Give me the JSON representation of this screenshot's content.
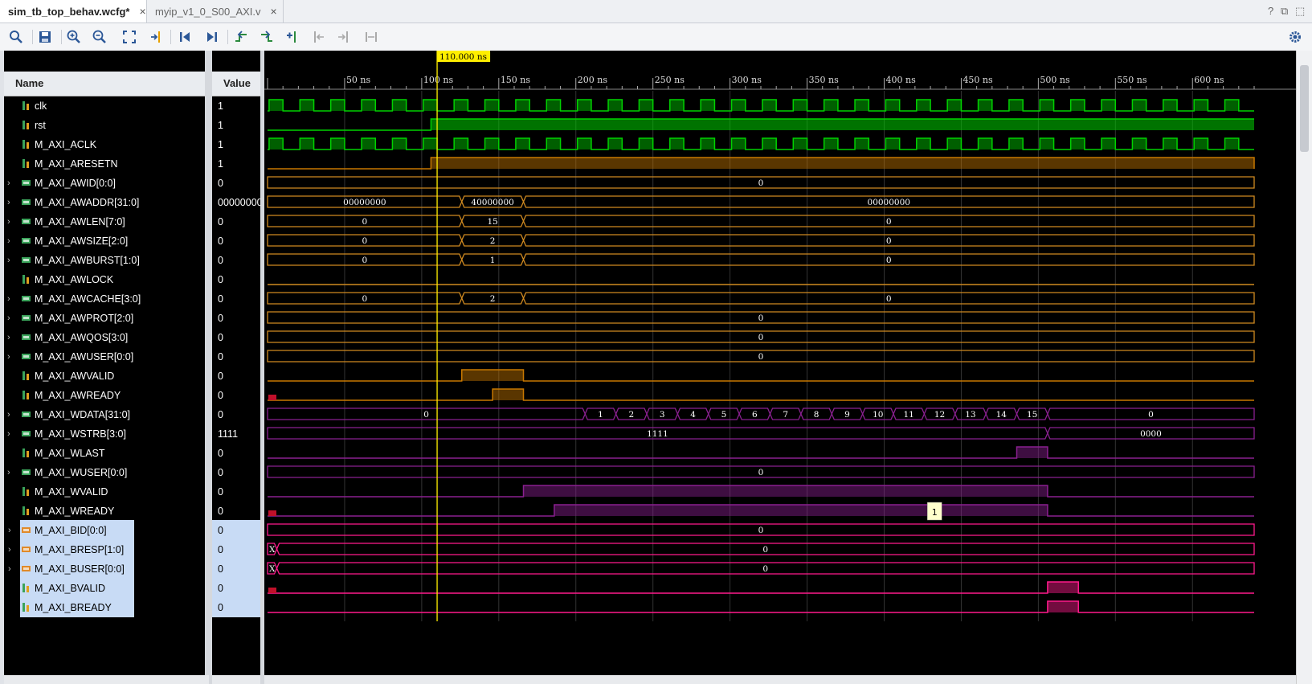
{
  "tabs": [
    {
      "label": "sim_tb_top_behav.wcfg*",
      "close": "×"
    },
    {
      "label": "myip_v1_0_S00_AXI.v",
      "close": "×"
    }
  ],
  "window_controls": {
    "help": "?",
    "restore": "⧉",
    "maximize": "⬚"
  },
  "toolbar_icons": [
    "search-icon",
    "save-icon",
    "zoom-in-icon",
    "zoom-out-icon",
    "zoom-fit-icon",
    "go-to-cursor-icon",
    "go-to-time-zero-icon",
    "go-to-last-time-icon",
    "previous-transition-icon",
    "next-transition-icon",
    "add-marker-icon",
    "previous-marker-icon",
    "next-marker-icon",
    "swap-cursors-icon",
    "settings-gear-icon"
  ],
  "columns": {
    "name": "Name",
    "value": "Value"
  },
  "cursor": {
    "label": "110.000 ns",
    "time_ns": 110
  },
  "time_axis": {
    "start_ns": 0,
    "end_ns": 640,
    "ticks": [
      {
        "t": 50,
        "label": "50 ns"
      },
      {
        "t": 100,
        "label": "100 ns"
      },
      {
        "t": 150,
        "label": "150 ns"
      },
      {
        "t": 200,
        "label": "200 ns"
      },
      {
        "t": 250,
        "label": "250 ns"
      },
      {
        "t": 300,
        "label": "300 ns"
      },
      {
        "t": 350,
        "label": "350 ns"
      },
      {
        "t": 400,
        "label": "400 ns"
      },
      {
        "t": 450,
        "label": "450 ns"
      },
      {
        "t": 500,
        "label": "500 ns"
      },
      {
        "t": 550,
        "label": "550 ns"
      },
      {
        "t": 600,
        "label": "600 ns"
      }
    ]
  },
  "signals": [
    {
      "name": "clk",
      "value": "1",
      "bus": false,
      "icon": "wire-icon",
      "color": "#00d200",
      "kind": "clock",
      "period": 20,
      "offset": 0,
      "selected": false
    },
    {
      "name": "rst",
      "value": "1",
      "bus": false,
      "icon": "wire-icon",
      "color": "#00d200",
      "kind": "clockhigh",
      "period": 10,
      "offset": 0,
      "selected": false,
      "high_from": 106
    },
    {
      "name": "M_AXI_ACLK",
      "value": "1",
      "bus": false,
      "icon": "wire-icon",
      "color": "#00d200",
      "kind": "clock",
      "period": 20,
      "offset": 0,
      "selected": false
    },
    {
      "name": "M_AXI_ARESETN",
      "value": "1",
      "bus": false,
      "icon": "wire-icon",
      "color": "#c87800",
      "kind": "bitfill",
      "selected": false,
      "fill_from": 106,
      "fill_to": 640
    },
    {
      "name": "M_AXI_AWID[0:0]",
      "value": "0",
      "bus": true,
      "icon": "bus-icon",
      "color": "#d08a20",
      "kind": "bus",
      "selected": false,
      "segments": [
        {
          "from": 0,
          "to": 640,
          "label": "0"
        }
      ]
    },
    {
      "name": "M_AXI_AWADDR[31:0]",
      "value": "00000000",
      "bus": true,
      "icon": "bus-icon",
      "color": "#d08a20",
      "kind": "bus",
      "selected": false,
      "segments": [
        {
          "from": 0,
          "to": 126,
          "label": "00000000"
        },
        {
          "from": 126,
          "to": 166,
          "label": "40000000"
        },
        {
          "from": 166,
          "to": 640,
          "label": "00000000"
        }
      ]
    },
    {
      "name": "M_AXI_AWLEN[7:0]",
      "value": "0",
      "bus": true,
      "icon": "bus-icon",
      "color": "#d08a20",
      "kind": "bus",
      "selected": false,
      "segments": [
        {
          "from": 0,
          "to": 126,
          "label": "0"
        },
        {
          "from": 126,
          "to": 166,
          "label": "15"
        },
        {
          "from": 166,
          "to": 640,
          "label": "0"
        }
      ]
    },
    {
      "name": "M_AXI_AWSIZE[2:0]",
      "value": "0",
      "bus": true,
      "icon": "bus-icon",
      "color": "#d08a20",
      "kind": "bus",
      "selected": false,
      "segments": [
        {
          "from": 0,
          "to": 126,
          "label": "0"
        },
        {
          "from": 126,
          "to": 166,
          "label": "2"
        },
        {
          "from": 166,
          "to": 640,
          "label": "0"
        }
      ]
    },
    {
      "name": "M_AXI_AWBURST[1:0]",
      "value": "0",
      "bus": true,
      "icon": "bus-icon",
      "color": "#d08a20",
      "kind": "bus",
      "selected": false,
      "segments": [
        {
          "from": 0,
          "to": 126,
          "label": "0"
        },
        {
          "from": 126,
          "to": 166,
          "label": "1"
        },
        {
          "from": 166,
          "to": 640,
          "label": "0"
        }
      ]
    },
    {
      "name": "M_AXI_AWLOCK",
      "value": "0",
      "bus": false,
      "icon": "wire-icon",
      "color": "#d08a20",
      "kind": "bitfill",
      "selected": false,
      "fill_from": 0,
      "fill_to": 0
    },
    {
      "name": "M_AXI_AWCACHE[3:0]",
      "value": "0",
      "bus": true,
      "icon": "bus-icon",
      "color": "#d08a20",
      "kind": "bus",
      "selected": false,
      "segments": [
        {
          "from": 0,
          "to": 126,
          "label": "0"
        },
        {
          "from": 126,
          "to": 166,
          "label": "2"
        },
        {
          "from": 166,
          "to": 640,
          "label": "0"
        }
      ]
    },
    {
      "name": "M_AXI_AWPROT[2:0]",
      "value": "0",
      "bus": true,
      "icon": "bus-icon",
      "color": "#d08a20",
      "kind": "bus",
      "selected": false,
      "segments": [
        {
          "from": 0,
          "to": 640,
          "label": "0"
        }
      ]
    },
    {
      "name": "M_AXI_AWQOS[3:0]",
      "value": "0",
      "bus": true,
      "icon": "bus-icon",
      "color": "#d08a20",
      "kind": "bus",
      "selected": false,
      "segments": [
        {
          "from": 0,
          "to": 640,
          "label": "0"
        }
      ]
    },
    {
      "name": "M_AXI_AWUSER[0:0]",
      "value": "0",
      "bus": true,
      "icon": "bus-icon",
      "color": "#d08a20",
      "kind": "bus",
      "selected": false,
      "segments": [
        {
          "from": 0,
          "to": 640,
          "label": "0"
        }
      ]
    },
    {
      "name": "M_AXI_AWVALID",
      "value": "0",
      "bus": false,
      "icon": "wire-icon",
      "color": "#c87800",
      "kind": "bitfill",
      "selected": false,
      "fill_from": 126,
      "fill_to": 166
    },
    {
      "name": "M_AXI_AWREADY",
      "value": "0",
      "bus": false,
      "icon": "wire-icon",
      "color": "#c87800",
      "kind": "bitfill",
      "selected": false,
      "fill_from": 146,
      "fill_to": 166,
      "marker_at": 0
    },
    {
      "name": "M_AXI_WDATA[31:0]",
      "value": "0",
      "bus": true,
      "icon": "bus-icon",
      "color": "#8a2090",
      "kind": "bus",
      "selected": false,
      "segments": [
        {
          "from": 0,
          "to": 206,
          "label": "0"
        },
        {
          "from": 206,
          "to": 226,
          "label": "1"
        },
        {
          "from": 226,
          "to": 246,
          "label": "2"
        },
        {
          "from": 246,
          "to": 266,
          "label": "3"
        },
        {
          "from": 266,
          "to": 286,
          "label": "4"
        },
        {
          "from": 286,
          "to": 306,
          "label": "5"
        },
        {
          "from": 306,
          "to": 326,
          "label": "6"
        },
        {
          "from": 326,
          "to": 346,
          "label": "7"
        },
        {
          "from": 346,
          "to": 366,
          "label": "8"
        },
        {
          "from": 366,
          "to": 386,
          "label": "9"
        },
        {
          "from": 386,
          "to": 406,
          "label": "10"
        },
        {
          "from": 406,
          "to": 426,
          "label": "11"
        },
        {
          "from": 426,
          "to": 446,
          "label": "12"
        },
        {
          "from": 446,
          "to": 466,
          "label": "13"
        },
        {
          "from": 466,
          "to": 486,
          "label": "14"
        },
        {
          "from": 486,
          "to": 506,
          "label": "15"
        },
        {
          "from": 506,
          "to": 640,
          "label": "0"
        }
      ]
    },
    {
      "name": "M_AXI_WSTRB[3:0]",
      "value": "1111",
      "bus": true,
      "icon": "bus-icon",
      "color": "#8a2090",
      "kind": "bus",
      "selected": false,
      "segments": [
        {
          "from": 0,
          "to": 506,
          "label": "1111"
        },
        {
          "from": 506,
          "to": 640,
          "label": "0000"
        }
      ]
    },
    {
      "name": "M_AXI_WLAST",
      "value": "0",
      "bus": false,
      "icon": "wire-icon",
      "color": "#8a2090",
      "kind": "bitfill",
      "selected": false,
      "fill_from": 486,
      "fill_to": 506
    },
    {
      "name": "M_AXI_WUSER[0:0]",
      "value": "0",
      "bus": true,
      "icon": "bus-icon",
      "color": "#8a2090",
      "kind": "bus",
      "selected": false,
      "segments": [
        {
          "from": 0,
          "to": 640,
          "label": "0"
        }
      ]
    },
    {
      "name": "M_AXI_WVALID",
      "value": "0",
      "bus": false,
      "icon": "wire-icon",
      "color": "#8a2090",
      "kind": "bitfill",
      "selected": false,
      "fill_from": 166,
      "fill_to": 506
    },
    {
      "name": "M_AXI_WREADY",
      "value": "0",
      "bus": false,
      "icon": "wire-icon",
      "color": "#8a2090",
      "kind": "bitfill",
      "selected": false,
      "fill_from": 186,
      "fill_to": 506,
      "marker_at": 0,
      "note": "1",
      "note_at": 428
    },
    {
      "name": "M_AXI_BID[0:0]",
      "value": "0",
      "bus": true,
      "icon": "bus-icon-orange",
      "color": "#ff1a8c",
      "kind": "bus",
      "selected": true,
      "segments": [
        {
          "from": 0,
          "to": 640,
          "label": "0"
        }
      ]
    },
    {
      "name": "M_AXI_BRESP[1:0]",
      "value": "0",
      "bus": true,
      "icon": "bus-icon-orange",
      "color": "#ff1a8c",
      "kind": "bus",
      "selected": true,
      "segments": [
        {
          "from": 0,
          "to": 6,
          "label": "X"
        },
        {
          "from": 6,
          "to": 640,
          "label": "0"
        }
      ]
    },
    {
      "name": "M_AXI_BUSER[0:0]",
      "value": "0",
      "bus": true,
      "icon": "bus-icon-orange",
      "color": "#ff1a8c",
      "kind": "bus",
      "selected": true,
      "segments": [
        {
          "from": 0,
          "to": 6,
          "label": "X"
        },
        {
          "from": 6,
          "to": 640,
          "label": "0"
        }
      ]
    },
    {
      "name": "M_AXI_BVALID",
      "value": "0",
      "bus": false,
      "icon": "wire-icon",
      "color": "#ff1a8c",
      "kind": "bitfill",
      "selected": true,
      "fill_from": 506,
      "fill_to": 526,
      "marker_at": 0
    },
    {
      "name": "M_AXI_BREADY",
      "value": "0",
      "bus": false,
      "icon": "wire-icon",
      "color": "#ff1a8c",
      "kind": "bitfill",
      "selected": true,
      "fill_from": 506,
      "fill_to": 526
    }
  ]
}
